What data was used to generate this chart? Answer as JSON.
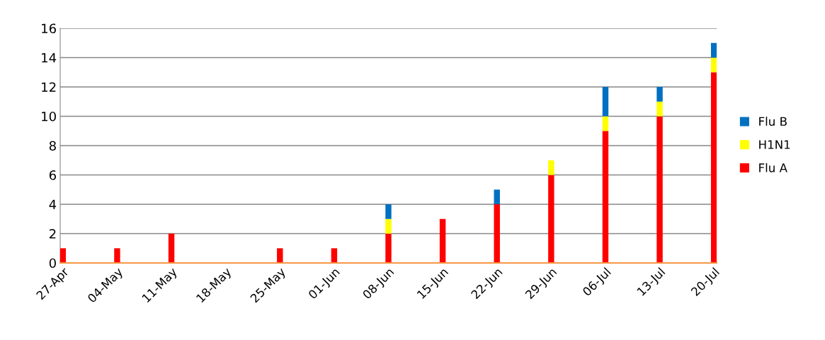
{
  "chart_data": {
    "type": "bar",
    "stacked": true,
    "categories": [
      "27-Apr",
      "04-May",
      "11-May",
      "18-May",
      "25-May",
      "01-Jun",
      "08-Jun",
      "15-Jun",
      "22-Jun",
      "29-Jun",
      "06-Jul",
      "13-Jul",
      "20-Jul"
    ],
    "series": [
      {
        "name": "Flu A",
        "color": "#ff0000",
        "values": [
          1,
          1,
          2,
          0,
          1,
          1,
          2,
          3,
          4,
          6,
          9,
          10,
          13
        ]
      },
      {
        "name": "H1N1",
        "color": "#ffff00",
        "values": [
          0,
          0,
          0,
          0,
          0,
          0,
          1,
          0,
          0,
          1,
          1,
          1,
          1
        ]
      },
      {
        "name": "Flu B",
        "color": "#0070c0",
        "values": [
          0,
          0,
          0,
          0,
          0,
          0,
          1,
          0,
          1,
          0,
          2,
          1,
          1
        ]
      }
    ],
    "ylim": [
      0,
      16
    ],
    "yticks": [
      0,
      2,
      4,
      6,
      8,
      10,
      12,
      14,
      16
    ],
    "grid": "y",
    "legend": "right"
  }
}
